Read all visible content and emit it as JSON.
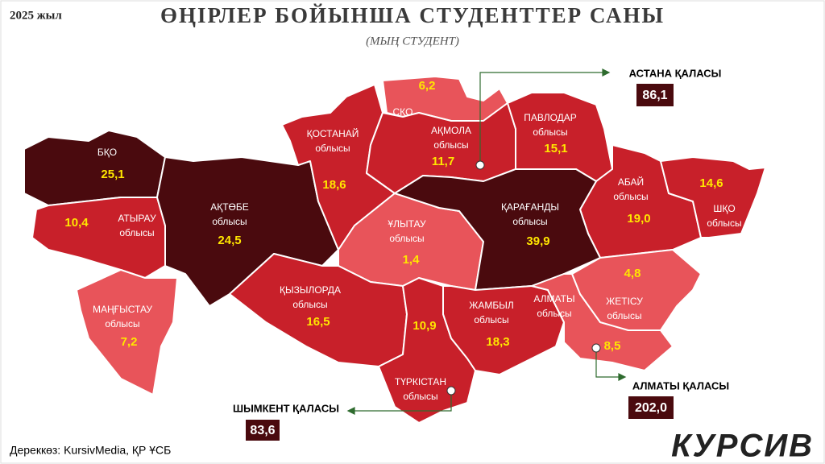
{
  "year": "2025 жыл",
  "title": "ӨҢІРЛЕР БОЙЫНША СТУДЕНТТЕР САНЫ",
  "subtitle": "(МЫҢ СТУДЕНТ)",
  "regions": [
    {
      "name": "БҚО",
      "value": "25,1"
    },
    {
      "name": "АТЫРАУ",
      "sub": "облысы",
      "value": "10,4"
    },
    {
      "name": "АҚТӨБЕ",
      "sub": "облысы",
      "value": "24,5"
    },
    {
      "name": "МАҢҒЫСТАУ",
      "sub": "облысы",
      "value": "7,2"
    },
    {
      "name": "ҚОСТАНАЙ",
      "sub": "облысы",
      "value": "18,6"
    },
    {
      "name": "СҚО",
      "value": "6,2"
    },
    {
      "name": "АҚМОЛА",
      "sub": "облысы",
      "value": "11,7"
    },
    {
      "name": "ПАВЛОДАР",
      "sub": "облысы",
      "value": "15,1"
    },
    {
      "name": "АБАЙ",
      "sub": "облысы",
      "value": "19,0"
    },
    {
      "name": "ШҚО",
      "sub": "облысы",
      "value": "14,6"
    },
    {
      "name": "ҰЛЫТАУ",
      "sub": "облысы",
      "value": "1,4"
    },
    {
      "name": "ҚАРАҒАНДЫ",
      "sub": "облысы",
      "value": "39,9"
    },
    {
      "name": "ҚЫЗЫЛОРДА",
      "sub": "облысы",
      "value": "16,5"
    },
    {
      "name": "ТҮРКІСТАН",
      "sub": "облысы",
      "value": "10,9"
    },
    {
      "name": "ЖАМБЫЛ",
      "sub": "облысы",
      "value": "18,3"
    },
    {
      "name": "АЛМАТЫ",
      "sub": "облысы",
      "value": "8,5"
    },
    {
      "name": "ЖЕТІСУ",
      "sub": "облысы",
      "value": "4,8"
    }
  ],
  "cities": [
    {
      "name": "АСТАНА ҚАЛАСЫ",
      "value": "86,1"
    },
    {
      "name": "АЛМАТЫ ҚАЛАСЫ",
      "value": "202,0"
    },
    {
      "name": "ШЫМКЕНТ ҚАЛАСЫ",
      "value": "83,6"
    }
  ],
  "source": "Дереккөз: KursivMedia, ҚР ҰСБ",
  "logo": "КУРСИВ"
}
